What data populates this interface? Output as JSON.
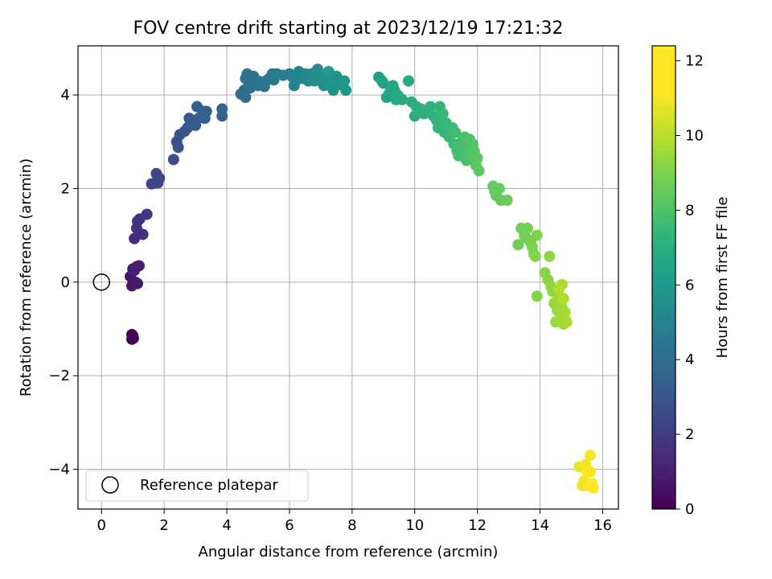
{
  "chart_data": {
    "type": "scatter",
    "title": "FOV centre drift starting at 2023/12/19 17:21:32",
    "xlabel": "Angular distance from reference (arcmin)",
    "ylabel": "Rotation from reference (arcmin)",
    "xlim": [
      -0.75,
      16.5
    ],
    "ylim": [
      -4.85,
      5.05
    ],
    "xticks": [
      0,
      2,
      4,
      6,
      8,
      10,
      12,
      14,
      16
    ],
    "yticks": [
      -4,
      -2,
      0,
      2,
      4
    ],
    "grid": true,
    "legend": {
      "placement": "lower-left",
      "entries": [
        "Reference platepar"
      ]
    },
    "reference_point": {
      "x": 0,
      "y": 0
    },
    "colorbar": {
      "label": "Hours from first FF file",
      "range": [
        0,
        12.4
      ],
      "ticks": [
        0,
        2,
        4,
        6,
        8,
        10,
        12
      ],
      "colormap": "viridis"
    },
    "series": [
      {
        "points": [
          [
            0.97,
            -1.22,
            0.05
          ],
          [
            1.0,
            -1.15,
            0.1
          ],
          [
            1.02,
            -1.2,
            0.12
          ],
          [
            0.97,
            -1.12,
            0.15
          ],
          [
            0.92,
            0.12,
            0.7
          ],
          [
            0.97,
            -0.08,
            0.75
          ],
          [
            1.0,
            0.28,
            0.8
          ],
          [
            1.08,
            0.0,
            0.85
          ],
          [
            1.15,
            -0.03,
            0.9
          ],
          [
            1.12,
            0.33,
            1.0
          ],
          [
            1.2,
            0.35,
            1.05
          ],
          [
            1.05,
            0.25,
            1.1
          ],
          [
            1.05,
            0.93,
            1.5
          ],
          [
            1.2,
            1.05,
            1.6
          ],
          [
            1.32,
            1.02,
            1.7
          ],
          [
            1.12,
            1.15,
            1.75
          ],
          [
            1.15,
            1.3,
            1.8
          ],
          [
            1.22,
            1.35,
            1.85
          ],
          [
            1.45,
            1.45,
            2.0
          ],
          [
            1.6,
            2.1,
            2.5
          ],
          [
            1.72,
            2.12,
            2.55
          ],
          [
            1.8,
            2.12,
            2.6
          ],
          [
            1.85,
            2.22,
            2.65
          ],
          [
            1.75,
            2.32,
            2.7
          ],
          [
            2.3,
            2.62,
            3.0
          ],
          [
            2.45,
            2.88,
            3.1
          ],
          [
            2.4,
            3.0,
            3.15
          ],
          [
            2.5,
            3.15,
            3.2
          ],
          [
            2.65,
            3.22,
            3.3
          ],
          [
            2.75,
            3.3,
            3.35
          ],
          [
            2.82,
            3.35,
            3.4
          ],
          [
            2.85,
            3.45,
            3.45
          ],
          [
            2.8,
            3.5,
            3.5
          ],
          [
            3.0,
            3.35,
            3.55
          ],
          [
            3.1,
            3.5,
            3.6
          ],
          [
            3.2,
            3.55,
            3.65
          ],
          [
            3.25,
            3.65,
            3.7
          ],
          [
            3.05,
            3.75,
            3.75
          ],
          [
            3.3,
            3.5,
            3.8
          ],
          [
            3.35,
            3.65,
            3.85
          ],
          [
            3.85,
            3.55,
            4.0
          ],
          [
            3.85,
            3.7,
            4.05
          ],
          [
            4.45,
            4.02,
            4.3
          ],
          [
            4.6,
            3.95,
            4.35
          ],
          [
            4.55,
            4.1,
            4.4
          ],
          [
            4.7,
            4.2,
            4.45
          ],
          [
            4.75,
            4.15,
            4.5
          ],
          [
            4.8,
            4.3,
            4.55
          ],
          [
            4.6,
            4.35,
            4.6
          ],
          [
            4.65,
            4.45,
            4.65
          ],
          [
            4.85,
            4.4,
            4.7
          ],
          [
            5.0,
            4.3,
            4.75
          ],
          [
            5.0,
            4.2,
            4.8
          ],
          [
            5.1,
            4.25,
            4.85
          ],
          [
            5.2,
            4.18,
            4.9
          ],
          [
            5.25,
            4.3,
            4.95
          ],
          [
            5.35,
            4.35,
            5.0
          ],
          [
            5.45,
            4.45,
            5.05
          ],
          [
            5.5,
            4.32,
            5.1
          ],
          [
            5.6,
            4.45,
            5.15
          ],
          [
            5.8,
            4.42,
            5.3
          ],
          [
            6.0,
            4.45,
            5.35
          ],
          [
            6.1,
            4.38,
            5.4
          ],
          [
            6.15,
            4.2,
            5.45
          ],
          [
            6.2,
            4.3,
            5.5
          ],
          [
            6.3,
            4.5,
            5.55
          ],
          [
            6.35,
            4.42,
            5.6
          ],
          [
            6.45,
            4.35,
            5.65
          ],
          [
            6.5,
            4.45,
            5.7
          ],
          [
            6.6,
            4.3,
            5.75
          ],
          [
            6.7,
            4.45,
            5.8
          ],
          [
            6.75,
            4.35,
            5.85
          ],
          [
            6.8,
            4.3,
            5.9
          ],
          [
            6.85,
            4.5,
            5.95
          ],
          [
            6.9,
            4.55,
            6.0
          ],
          [
            6.95,
            4.4,
            6.05
          ],
          [
            7.0,
            4.3,
            6.1
          ],
          [
            7.1,
            4.2,
            6.15
          ],
          [
            7.15,
            4.35,
            6.2
          ],
          [
            7.2,
            4.4,
            6.25
          ],
          [
            7.3,
            4.2,
            6.3
          ],
          [
            7.4,
            4.1,
            6.35
          ],
          [
            7.45,
            4.35,
            6.4
          ],
          [
            7.5,
            4.4,
            6.45
          ],
          [
            7.6,
            4.25,
            6.5
          ],
          [
            7.7,
            4.2,
            6.55
          ],
          [
            7.75,
            4.3,
            6.6
          ],
          [
            7.8,
            4.1,
            6.65
          ],
          [
            7.25,
            4.5,
            6.7
          ],
          [
            8.85,
            4.38,
            7.0
          ],
          [
            8.95,
            4.3,
            7.05
          ],
          [
            9.0,
            4.25,
            7.1
          ],
          [
            9.1,
            3.95,
            7.15
          ],
          [
            9.2,
            4.05,
            7.2
          ],
          [
            9.3,
            4.2,
            7.25
          ],
          [
            9.35,
            4.1,
            7.3
          ],
          [
            9.4,
            3.9,
            7.35
          ],
          [
            9.45,
            4.0,
            7.4
          ],
          [
            9.5,
            3.95,
            7.45
          ],
          [
            9.6,
            3.9,
            7.5
          ],
          [
            9.8,
            4.3,
            7.55
          ],
          [
            9.9,
            3.85,
            7.6
          ],
          [
            10.0,
            3.55,
            7.65
          ],
          [
            10.05,
            3.75,
            7.7
          ],
          [
            10.1,
            3.65,
            7.75
          ],
          [
            10.2,
            3.7,
            7.8
          ],
          [
            10.3,
            3.6,
            7.85
          ],
          [
            10.4,
            3.65,
            7.9
          ],
          [
            10.5,
            3.75,
            7.95
          ],
          [
            10.6,
            3.55,
            8.0
          ],
          [
            10.7,
            3.45,
            8.05
          ],
          [
            10.75,
            3.3,
            8.1
          ],
          [
            10.8,
            3.75,
            8.15
          ],
          [
            10.9,
            3.6,
            8.2
          ],
          [
            10.95,
            3.2,
            8.25
          ],
          [
            11.0,
            3.4,
            8.3
          ],
          [
            11.1,
            3.1,
            8.35
          ],
          [
            11.2,
            3.3,
            8.4
          ],
          [
            11.25,
            2.95,
            8.45
          ],
          [
            11.3,
            3.2,
            8.5
          ],
          [
            11.35,
            2.8,
            8.55
          ],
          [
            11.4,
            2.7,
            8.6
          ],
          [
            11.5,
            3.0,
            8.65
          ],
          [
            11.55,
            2.85,
            8.7
          ],
          [
            11.6,
            3.1,
            8.75
          ],
          [
            11.65,
            2.6,
            8.8
          ],
          [
            11.7,
            2.75,
            8.85
          ],
          [
            11.75,
            3.05,
            8.9
          ],
          [
            11.8,
            2.65,
            8.95
          ],
          [
            11.85,
            2.95,
            9.0
          ],
          [
            11.9,
            2.8,
            9.05
          ],
          [
            11.95,
            2.5,
            9.1
          ],
          [
            12.0,
            2.65,
            9.15
          ],
          [
            12.05,
            2.38,
            9.2
          ],
          [
            12.5,
            2.05,
            9.3
          ],
          [
            12.55,
            1.95,
            9.35
          ],
          [
            12.6,
            1.85,
            9.4
          ],
          [
            12.7,
            2.0,
            9.45
          ],
          [
            12.75,
            1.75,
            9.5
          ],
          [
            12.95,
            1.75,
            9.55
          ],
          [
            13.3,
            0.8,
            9.6
          ],
          [
            13.4,
            1.15,
            9.65
          ],
          [
            13.5,
            1.0,
            9.7
          ],
          [
            13.55,
            0.95,
            9.75
          ],
          [
            13.6,
            1.15,
            9.8
          ],
          [
            13.7,
            0.85,
            9.85
          ],
          [
            13.75,
            0.75,
            9.9
          ],
          [
            13.8,
            0.6,
            9.95
          ],
          [
            13.9,
            1.0,
            10.0
          ],
          [
            13.85,
            0.55,
            10.05
          ],
          [
            13.9,
            -0.3,
            10.1
          ],
          [
            14.15,
            0.2,
            10.15
          ],
          [
            14.25,
            0.05,
            10.2
          ],
          [
            14.3,
            0.55,
            10.25
          ],
          [
            14.35,
            -0.1,
            10.3
          ],
          [
            14.4,
            -0.2,
            10.35
          ],
          [
            14.45,
            -0.45,
            10.4
          ],
          [
            14.5,
            -0.85,
            10.45
          ],
          [
            14.55,
            -0.6,
            10.5
          ],
          [
            14.6,
            -0.35,
            10.55
          ],
          [
            14.65,
            -0.75,
            10.6
          ],
          [
            14.7,
            -0.55,
            10.65
          ],
          [
            14.75,
            -0.9,
            10.7
          ],
          [
            14.8,
            -0.65,
            10.75
          ],
          [
            14.85,
            -0.85,
            10.8
          ],
          [
            14.7,
            -0.05,
            10.85
          ],
          [
            14.75,
            -0.35,
            10.9
          ],
          [
            14.6,
            -0.15,
            10.95
          ],
          [
            15.25,
            -3.95,
            12.0
          ],
          [
            15.35,
            -4.35,
            12.05
          ],
          [
            15.4,
            -4.25,
            12.1
          ],
          [
            15.45,
            -3.9,
            12.15
          ],
          [
            15.5,
            -4.05,
            12.2
          ],
          [
            15.55,
            -4.35,
            12.25
          ],
          [
            15.6,
            -3.7,
            12.3
          ],
          [
            15.6,
            -4.05,
            12.3
          ],
          [
            15.65,
            -4.3,
            12.35
          ],
          [
            15.7,
            -4.4,
            12.4
          ]
        ]
      }
    ]
  }
}
